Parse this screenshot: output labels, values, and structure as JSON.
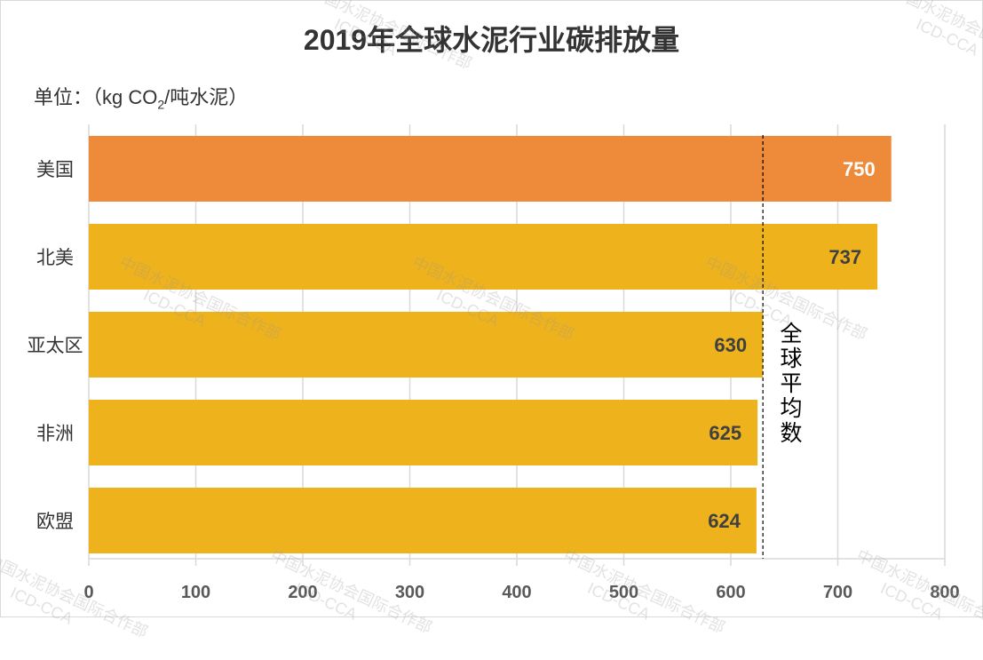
{
  "chart_data": {
    "type": "bar",
    "orientation": "horizontal",
    "title": "2019年全球水泥行业碳排放量",
    "unit_label": {
      "prefix": "单位：（kg CO",
      "subscript": "2",
      "suffix": "/吨水泥）"
    },
    "categories": [
      "美国",
      "北美",
      "亚太区",
      "非洲",
      "欧盟"
    ],
    "values": [
      750,
      737,
      630,
      625,
      624
    ],
    "bar_colors": [
      "#ED8B3B",
      "#EEB21C",
      "#EEB21C",
      "#EEB21C",
      "#EEB21C"
    ],
    "xlim": [
      0,
      800
    ],
    "xticks": [
      "0",
      "100",
      "200",
      "300",
      "400",
      "500",
      "600",
      "700",
      "800"
    ],
    "grid": true,
    "reference_line": {
      "value": 630,
      "label": "全球平均数",
      "style": "dashed"
    }
  },
  "watermark": {
    "line1": "中国水泥协会国际合作部",
    "line2": "ICD-CCA"
  }
}
